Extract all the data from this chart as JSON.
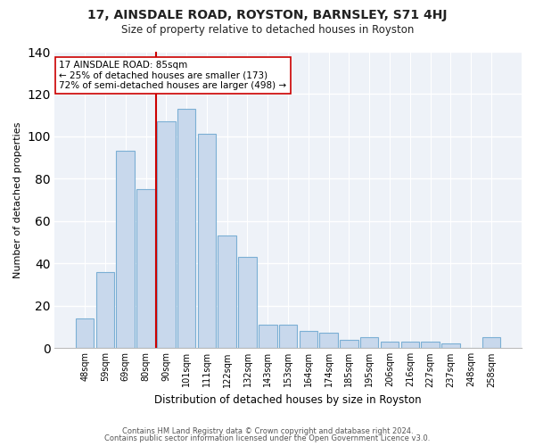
{
  "title": "17, AINSDALE ROAD, ROYSTON, BARNSLEY, S71 4HJ",
  "subtitle": "Size of property relative to detached houses in Royston",
  "xlabel": "Distribution of detached houses by size in Royston",
  "ylabel": "Number of detached properties",
  "bar_labels": [
    "48sqm",
    "59sqm",
    "69sqm",
    "80sqm",
    "90sqm",
    "101sqm",
    "111sqm",
    "122sqm",
    "132sqm",
    "143sqm",
    "153sqm",
    "164sqm",
    "174sqm",
    "185sqm",
    "195sqm",
    "206sqm",
    "216sqm",
    "227sqm",
    "237sqm",
    "248sqm",
    "258sqm"
  ],
  "bar_values": [
    14,
    36,
    93,
    75,
    107,
    113,
    101,
    53,
    43,
    11,
    11,
    8,
    7,
    4,
    5,
    3,
    3,
    3,
    2,
    0,
    5
  ],
  "bar_color": "#c8d8ec",
  "bar_edge_color": "#7bafd4",
  "vline_index": 4,
  "vline_color": "#cc0000",
  "annotation_title": "17 AINSDALE ROAD: 85sqm",
  "annotation_line1": "← 25% of detached houses are smaller (173)",
  "annotation_line2": "72% of semi-detached houses are larger (498) →",
  "annotation_box_color": "#ffffff",
  "annotation_border_color": "#cc0000",
  "ylim": [
    0,
    140
  ],
  "yticks": [
    0,
    20,
    40,
    60,
    80,
    100,
    120,
    140
  ],
  "footer1": "Contains HM Land Registry data © Crown copyright and database right 2024.",
  "footer2": "Contains public sector information licensed under the Open Government Licence v3.0.",
  "bg_color": "#ffffff",
  "plot_bg_color": "#eef2f8"
}
